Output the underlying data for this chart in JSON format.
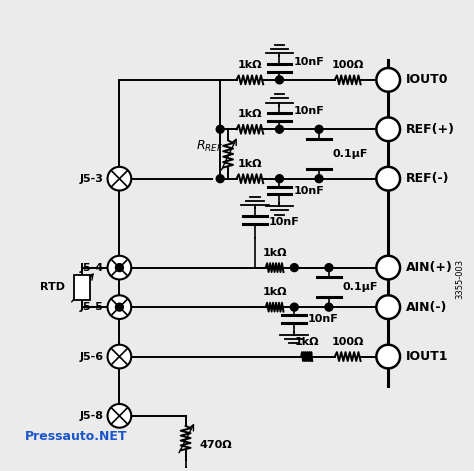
{
  "bg_color": "#ebebeb",
  "line_color": "#000000",
  "text_color": "#000000",
  "blue_text_color": "#1a55cc",
  "watermark": "Pressauto.NET",
  "part_number": "3355-003",
  "labels_right": [
    "IOUT0",
    "REF(+)",
    "REF(-)",
    "AIN(+)",
    "AIN(-)",
    "IOUT1"
  ]
}
